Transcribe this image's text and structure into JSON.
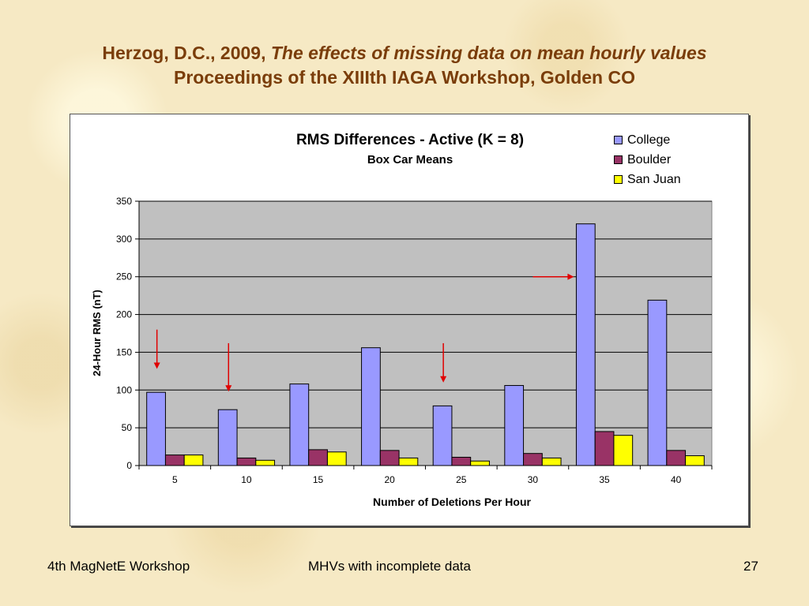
{
  "slide": {
    "title_line1_plain": "Herzog, D.C., 2009, ",
    "title_line1_italic": "The effects of missing data on mean hourly values",
    "title_line2": "Proceedings of the XIIIth IAGA Workshop, Golden CO",
    "footer_left": "4th MagNetE Workshop",
    "footer_center": "MHVs with incomplete data",
    "footer_right": "27"
  },
  "colors": {
    "plot_background": "#c0c0c0",
    "arrow": "#e00000",
    "title": "#7a3d0a"
  },
  "chart_data": {
    "type": "bar",
    "title": "RMS Differences - Active (K = 8)",
    "subtitle": "Box Car Means",
    "xlabel": "Number of Deletions Per Hour",
    "ylabel": "24-Hour RMS (nT)",
    "categories": [
      "5",
      "10",
      "15",
      "20",
      "25",
      "30",
      "35",
      "40"
    ],
    "ylim": [
      0,
      350
    ],
    "yticks": [
      0,
      50,
      100,
      150,
      200,
      250,
      300,
      350
    ],
    "grid": true,
    "legend_position": "top-right",
    "series": [
      {
        "name": "College",
        "color": "#9999ff",
        "values": [
          97,
          74,
          108,
          156,
          79,
          106,
          320,
          219
        ]
      },
      {
        "name": "Boulder",
        "color": "#993366",
        "values": [
          14,
          10,
          21,
          20,
          11,
          16,
          45,
          20
        ]
      },
      {
        "name": "San Juan",
        "color": "#ffff00",
        "values": [
          14,
          7,
          18,
          10,
          6,
          10,
          40,
          13
        ]
      }
    ],
    "annotations": [
      {
        "type": "arrow",
        "direction": "down",
        "category": "5",
        "value_from": 180,
        "value_to": 128
      },
      {
        "type": "arrow",
        "direction": "down",
        "category": "10",
        "value_from": 162,
        "value_to": 98
      },
      {
        "type": "arrow",
        "direction": "down",
        "category": "25",
        "value_from": 162,
        "value_to": 110
      },
      {
        "type": "arrow",
        "direction": "right",
        "category": "35",
        "value_from": 250,
        "value_to": 250
      }
    ]
  }
}
